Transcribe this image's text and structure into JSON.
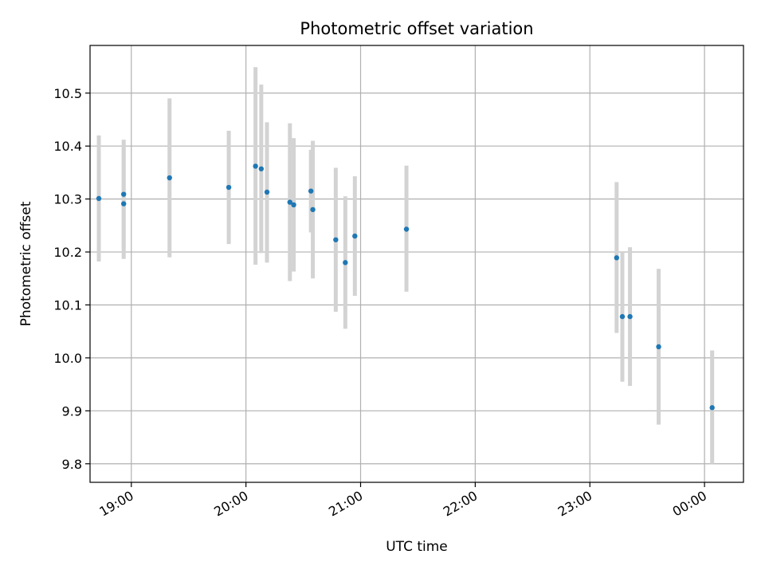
{
  "chart_data": {
    "type": "scatter",
    "title": "Photometric offset variation",
    "xlabel": "UTC time",
    "ylabel": "Photometric offset",
    "xlim_hours": [
      18.64,
      24.34
    ],
    "ylim": [
      9.765,
      10.59
    ],
    "x_ticks": [
      {
        "hour": 19,
        "label": "19:00"
      },
      {
        "hour": 20,
        "label": "20:00"
      },
      {
        "hour": 21,
        "label": "21:00"
      },
      {
        "hour": 22,
        "label": "22:00"
      },
      {
        "hour": 23,
        "label": "23:00"
      },
      {
        "hour": 24,
        "label": "00:00"
      }
    ],
    "y_ticks": [
      {
        "value": 9.8,
        "label": "9.8"
      },
      {
        "value": 9.9,
        "label": "9.9"
      },
      {
        "value": 10.0,
        "label": "10.0"
      },
      {
        "value": 10.1,
        "label": "10.1"
      },
      {
        "value": 10.2,
        "label": "10.2"
      },
      {
        "value": 10.3,
        "label": "10.3"
      },
      {
        "value": 10.4,
        "label": "10.4"
      },
      {
        "value": 10.5,
        "label": "10.5"
      }
    ],
    "grid": true,
    "legend": "none",
    "point_color": "#1f77b4",
    "errorbar_color": "#d3d3d3",
    "points": [
      {
        "t": "18:43",
        "y": 10.301,
        "lo": 10.182,
        "hi": 10.42
      },
      {
        "t": "18:56",
        "y": 10.309,
        "lo": 10.207,
        "hi": 10.412
      },
      {
        "t": "18:56",
        "y": 10.291,
        "lo": 10.187,
        "hi": 10.395
      },
      {
        "t": "19:20",
        "y": 10.34,
        "lo": 10.19,
        "hi": 10.49
      },
      {
        "t": "19:51",
        "y": 10.322,
        "lo": 10.215,
        "hi": 10.429
      },
      {
        "t": "20:05",
        "y": 10.362,
        "lo": 10.176,
        "hi": 10.549
      },
      {
        "t": "20:08",
        "y": 10.357,
        "lo": 10.198,
        "hi": 10.516
      },
      {
        "t": "20:11",
        "y": 10.313,
        "lo": 10.18,
        "hi": 10.445
      },
      {
        "t": "20:23",
        "y": 10.294,
        "lo": 10.145,
        "hi": 10.443
      },
      {
        "t": "20:25",
        "y": 10.289,
        "lo": 10.163,
        "hi": 10.415
      },
      {
        "t": "20:34",
        "y": 10.315,
        "lo": 10.237,
        "hi": 10.393
      },
      {
        "t": "20:35",
        "y": 10.28,
        "lo": 10.15,
        "hi": 10.41
      },
      {
        "t": "20:47",
        "y": 10.223,
        "lo": 10.087,
        "hi": 10.359
      },
      {
        "t": "20:52",
        "y": 10.18,
        "lo": 10.055,
        "hi": 10.305
      },
      {
        "t": "20:57",
        "y": 10.23,
        "lo": 10.117,
        "hi": 10.343
      },
      {
        "t": "21:24",
        "y": 10.243,
        "lo": 10.125,
        "hi": 10.363
      },
      {
        "t": "23:14",
        "y": 10.189,
        "lo": 10.047,
        "hi": 10.332
      },
      {
        "t": "23:17",
        "y": 10.078,
        "lo": 9.955,
        "hi": 10.2
      },
      {
        "t": "23:21",
        "y": 10.078,
        "lo": 9.947,
        "hi": 10.209
      },
      {
        "t": "23:36",
        "y": 10.021,
        "lo": 9.874,
        "hi": 10.168
      },
      {
        "t": "00:04",
        "y": 9.906,
        "lo": 9.8,
        "hi": 10.014
      }
    ]
  }
}
